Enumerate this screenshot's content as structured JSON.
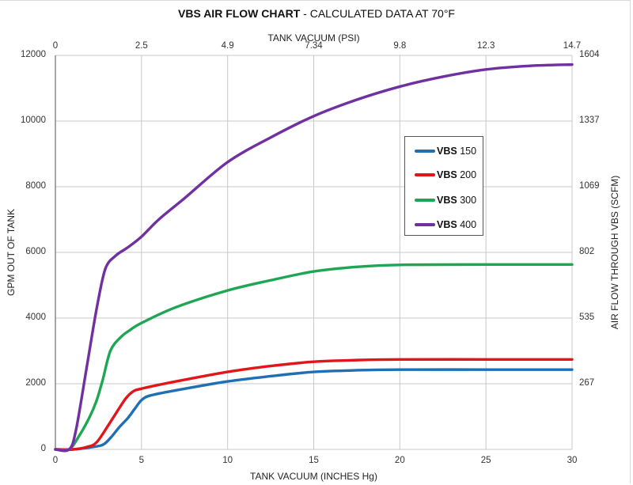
{
  "chart_data": {
    "type": "line",
    "title": "VBS AIR FLOW CHART - CALCULATED DATA AT 70°F",
    "title_bold": "VBS AIR FLOW CHART",
    "title_rest": " - CALCULATED DATA AT 70°F",
    "xlabel": "TANK VACUUM (INCHES Hg)",
    "x2label": "TANK VACUUM (PSI)",
    "ylabel": "GPM OUT OF TANK",
    "y2label": "AIR FLOW THROUGH VBS (SCFM)",
    "xlim": [
      0,
      30
    ],
    "ylim": [
      0,
      12000
    ],
    "grid": true,
    "legend_position": "inside-right",
    "x_ticks": [
      "0",
      "5",
      "10",
      "15",
      "20",
      "25",
      "30"
    ],
    "x2_ticks": [
      "0",
      "2.5",
      "4.9",
      "7.34",
      "9.8",
      "12.3",
      "14.7"
    ],
    "y_ticks": [
      "0",
      "2000",
      "4000",
      "6000",
      "8000",
      "10000",
      "12000"
    ],
    "y2_ticks": [
      "",
      "267",
      "535",
      "802",
      "1069",
      "1337",
      "1604"
    ],
    "series": [
      {
        "name": "VBS 150",
        "model": "VBS",
        "size": "150",
        "color": "#1f6fb5",
        "x": [
          0,
          1,
          2,
          2.75,
          3.2,
          3.7,
          4.2,
          4.6,
          5,
          5.5,
          7,
          10,
          12.5,
          15,
          17.5,
          20,
          25,
          30
        ],
        "values": [
          0,
          0,
          60,
          140,
          350,
          670,
          950,
          1230,
          1500,
          1640,
          1800,
          2070,
          2230,
          2360,
          2410,
          2430,
          2430,
          2430
        ]
      },
      {
        "name": "VBS 200",
        "model": "VBS",
        "size": "200",
        "color": "#e0161b",
        "x": [
          0,
          1,
          1.8,
          2.4,
          3.2,
          3.7,
          4.1,
          4.5,
          5,
          7,
          10,
          12.5,
          15,
          17.5,
          20,
          25,
          30
        ],
        "values": [
          0,
          0,
          70,
          220,
          840,
          1250,
          1560,
          1760,
          1850,
          2070,
          2360,
          2540,
          2670,
          2720,
          2740,
          2740,
          2740
        ]
      },
      {
        "name": "VBS 300",
        "model": "VBS",
        "size": "300",
        "color": "#1fa655",
        "x": [
          0,
          0.8,
          1.4,
          2,
          2.4,
          2.75,
          3.2,
          3.8,
          4.35,
          5,
          7,
          10,
          12.5,
          15,
          17.5,
          20,
          25,
          30
        ],
        "values": [
          0,
          0,
          430,
          1000,
          1500,
          2120,
          3010,
          3420,
          3640,
          3850,
          4330,
          4840,
          5150,
          5420,
          5560,
          5620,
          5630,
          5630
        ]
      },
      {
        "name": "VBS 400",
        "model": "VBS",
        "size": "400",
        "color": "#7030a0",
        "x": [
          0,
          0.8,
          1.2,
          1.85,
          2.4,
          2.9,
          3.5,
          4.2,
          5,
          6,
          7.5,
          10,
          12.5,
          15,
          17.5,
          20,
          22.5,
          25,
          27.5,
          30
        ],
        "values": [
          0,
          0,
          600,
          2600,
          4300,
          5500,
          5900,
          6150,
          6480,
          7000,
          7650,
          8750,
          9500,
          10150,
          10650,
          11050,
          11350,
          11570,
          11680,
          11720
        ]
      }
    ]
  }
}
